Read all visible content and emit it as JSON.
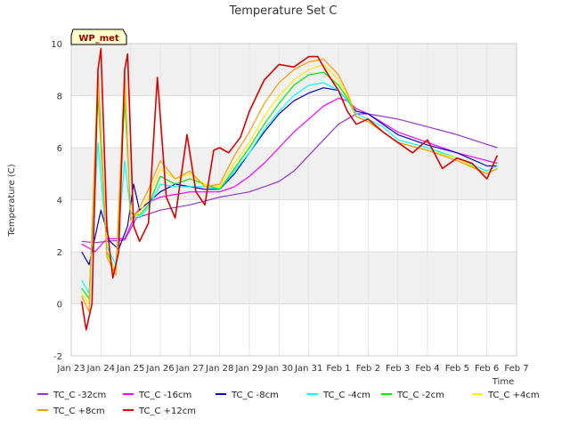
{
  "chart_data": {
    "type": "line",
    "title": "Temperature Set C",
    "xlabel": "Time",
    "ylabel": "Temperature (C)",
    "site_label": "WP_met",
    "xlim": [
      0,
      15
    ],
    "ylim": [
      -2,
      10
    ],
    "x_ticks": [
      {
        "value": 0,
        "label": "Jan 23"
      },
      {
        "value": 1,
        "label": "Jan 24"
      },
      {
        "value": 2,
        "label": "Jan 25"
      },
      {
        "value": 3,
        "label": "Jan 26"
      },
      {
        "value": 4,
        "label": "Jan 27"
      },
      {
        "value": 5,
        "label": "Jan 28"
      },
      {
        "value": 6,
        "label": "Jan 29"
      },
      {
        "value": 7,
        "label": "Jan 30"
      },
      {
        "value": 8,
        "label": "Jan 31"
      },
      {
        "value": 9,
        "label": "Feb 1"
      },
      {
        "value": 10,
        "label": "Feb 2"
      },
      {
        "value": 11,
        "label": "Feb 3"
      },
      {
        "value": 12,
        "label": "Feb 4"
      },
      {
        "value": 13,
        "label": "Feb 5"
      },
      {
        "value": 14,
        "label": "Feb 6"
      },
      {
        "value": 15,
        "label": "Feb 7"
      }
    ],
    "y_ticks": [
      -2,
      0,
      2,
      4,
      6,
      8,
      10
    ],
    "series": [
      {
        "name": "TC_C -32cm",
        "color": "#9933cc",
        "x": [
          0.35,
          0.8,
          1.2,
          1.8,
          2.2,
          3.0,
          4.0,
          5.0,
          6.0,
          6.5,
          7.0,
          7.5,
          8.0,
          8.5,
          9.0,
          9.3,
          9.6,
          10.0,
          11.0,
          12.0,
          13.0,
          13.8,
          14.35
        ],
        "y": [
          2.4,
          2.35,
          2.4,
          2.45,
          3.3,
          3.6,
          3.8,
          4.1,
          4.3,
          4.5,
          4.7,
          5.1,
          5.7,
          6.3,
          6.9,
          7.1,
          7.3,
          7.3,
          7.1,
          6.8,
          6.5,
          6.2,
          6.0
        ]
      },
      {
        "name": "TC_C -16cm",
        "color": "#ff00ff",
        "x": [
          0.35,
          0.8,
          1.2,
          1.8,
          2.2,
          2.6,
          3.0,
          3.5,
          4.0,
          4.5,
          5.0,
          5.5,
          6.0,
          6.5,
          7.0,
          7.5,
          8.0,
          8.5,
          9.0,
          9.3,
          9.6,
          10.0,
          11.0,
          12.0,
          13.0,
          14.0,
          14.35
        ],
        "y": [
          2.3,
          2.0,
          2.5,
          2.5,
          3.5,
          3.9,
          4.1,
          4.2,
          4.3,
          4.3,
          4.3,
          4.5,
          4.9,
          5.4,
          6.0,
          6.6,
          7.1,
          7.6,
          7.9,
          7.8,
          7.5,
          7.3,
          6.6,
          6.2,
          5.8,
          5.5,
          5.4
        ]
      },
      {
        "name": "TC_C -8cm",
        "color": "#0000cc",
        "x": [
          0.35,
          0.6,
          1.0,
          1.3,
          1.6,
          1.9,
          2.1,
          2.3,
          2.6,
          3.0,
          3.5,
          4.0,
          4.5,
          5.0,
          5.5,
          6.0,
          6.5,
          7.0,
          7.5,
          8.0,
          8.5,
          9.0,
          9.3,
          9.6,
          10.0,
          10.5,
          11.0,
          12.0,
          13.0,
          14.0,
          14.35
        ],
        "y": [
          2.0,
          1.5,
          3.6,
          2.4,
          2.1,
          3.0,
          4.6,
          3.6,
          3.9,
          4.3,
          4.6,
          4.5,
          4.4,
          4.4,
          5.0,
          5.8,
          6.6,
          7.3,
          7.8,
          8.1,
          8.3,
          8.2,
          7.8,
          7.4,
          7.3,
          6.9,
          6.5,
          6.1,
          5.8,
          5.3,
          5.3
        ]
      },
      {
        "name": "TC_C -4cm",
        "color": "#00ffff",
        "x": [
          0.35,
          0.6,
          0.9,
          1.2,
          1.5,
          1.8,
          2.0,
          2.3,
          2.6,
          3.0,
          3.5,
          4.0,
          4.5,
          5.0,
          5.5,
          6.0,
          6.5,
          7.0,
          7.5,
          8.0,
          8.5,
          9.0,
          9.3,
          9.6,
          10.0,
          10.5,
          11.0,
          12.0,
          13.0,
          14.0,
          14.35
        ],
        "y": [
          0.9,
          0.4,
          6.2,
          2.2,
          1.5,
          5.5,
          3.5,
          3.3,
          3.7,
          4.6,
          4.5,
          4.5,
          4.5,
          4.4,
          5.1,
          5.8,
          6.7,
          7.4,
          8.0,
          8.4,
          8.5,
          8.2,
          7.8,
          7.3,
          7.1,
          6.8,
          6.3,
          6.0,
          5.6,
          5.1,
          5.3
        ]
      },
      {
        "name": "TC_C -2cm",
        "color": "#00ee00",
        "x": [
          0.35,
          0.6,
          0.9,
          1.2,
          1.5,
          1.8,
          2.0,
          2.3,
          2.6,
          3.0,
          3.5,
          4.0,
          4.5,
          5.0,
          5.5,
          6.0,
          6.5,
          7.0,
          7.5,
          8.0,
          8.5,
          9.0,
          9.3,
          9.6,
          10.0,
          10.5,
          11.0,
          12.0,
          13.0,
          14.0,
          14.35
        ],
        "y": [
          0.6,
          0.2,
          8.0,
          2.0,
          1.2,
          7.8,
          3.5,
          3.4,
          3.8,
          4.9,
          4.6,
          4.8,
          4.6,
          4.4,
          5.2,
          6.0,
          6.9,
          7.7,
          8.4,
          8.8,
          8.9,
          8.4,
          7.9,
          7.2,
          7.0,
          6.6,
          6.2,
          5.9,
          5.6,
          5.0,
          5.2
        ]
      },
      {
        "name": "TC_C +4cm",
        "color": "#ffee00",
        "x": [
          0.35,
          0.6,
          0.9,
          1.2,
          1.5,
          1.8,
          2.0,
          2.3,
          2.6,
          3.0,
          3.5,
          4.0,
          4.5,
          5.0,
          5.5,
          6.0,
          6.5,
          7.0,
          7.5,
          8.0,
          8.5,
          9.0,
          9.3,
          9.6,
          10.0,
          10.5,
          11.0,
          12.0,
          13.0,
          14.0,
          14.35
        ],
        "y": [
          0.4,
          0.0,
          8.6,
          1.9,
          1.2,
          8.4,
          3.3,
          3.5,
          4.1,
          5.2,
          4.8,
          5.0,
          4.6,
          4.5,
          5.4,
          6.2,
          7.2,
          8.0,
          8.6,
          9.0,
          9.2,
          8.6,
          8.0,
          7.2,
          7.0,
          6.6,
          6.2,
          5.9,
          5.6,
          5.0,
          5.2
        ]
      },
      {
        "name": "TC_C +8cm",
        "color": "#ff9900",
        "x": [
          0.35,
          0.6,
          0.9,
          1.2,
          1.5,
          1.8,
          2.0,
          2.3,
          2.6,
          3.0,
          3.5,
          4.0,
          4.5,
          5.0,
          5.5,
          6.0,
          6.5,
          7.0,
          7.5,
          8.0,
          8.5,
          9.0,
          9.3,
          9.6,
          10.0,
          10.5,
          11.0,
          12.0,
          13.0,
          14.0,
          14.35
        ],
        "y": [
          0.3,
          -0.3,
          9.0,
          1.8,
          1.1,
          8.9,
          3.2,
          3.7,
          4.4,
          5.5,
          4.8,
          5.1,
          4.5,
          4.6,
          5.7,
          6.6,
          7.7,
          8.5,
          9.0,
          9.3,
          9.4,
          8.8,
          8.1,
          7.2,
          7.0,
          6.6,
          6.2,
          5.9,
          5.5,
          5.0,
          5.2
        ]
      },
      {
        "name": "TC_C +12cm",
        "color": "#dd0000",
        "x": [
          0.35,
          0.5,
          0.7,
          0.9,
          1.0,
          1.2,
          1.4,
          1.6,
          1.8,
          1.9,
          2.1,
          2.3,
          2.6,
          2.9,
          3.2,
          3.5,
          3.9,
          4.2,
          4.5,
          4.8,
          5.0,
          5.3,
          5.7,
          6.0,
          6.5,
          7.0,
          7.5,
          8.0,
          8.3,
          8.6,
          9.0,
          9.3,
          9.6,
          10.0,
          10.5,
          11.0,
          11.5,
          12.0,
          12.5,
          13.0,
          13.5,
          14.0,
          14.35
        ],
        "y": [
          0.1,
          -1.0,
          0.0,
          9.0,
          9.8,
          3.0,
          1.0,
          2.0,
          9.0,
          9.6,
          3.0,
          2.4,
          3.1,
          8.7,
          4.1,
          3.3,
          6.5,
          4.3,
          3.8,
          5.9,
          6.0,
          5.8,
          6.4,
          7.4,
          8.6,
          9.2,
          9.1,
          9.5,
          9.5,
          8.9,
          8.2,
          7.4,
          6.9,
          7.1,
          6.6,
          6.2,
          5.8,
          6.3,
          5.2,
          5.6,
          5.4,
          4.8,
          5.7
        ]
      }
    ]
  }
}
